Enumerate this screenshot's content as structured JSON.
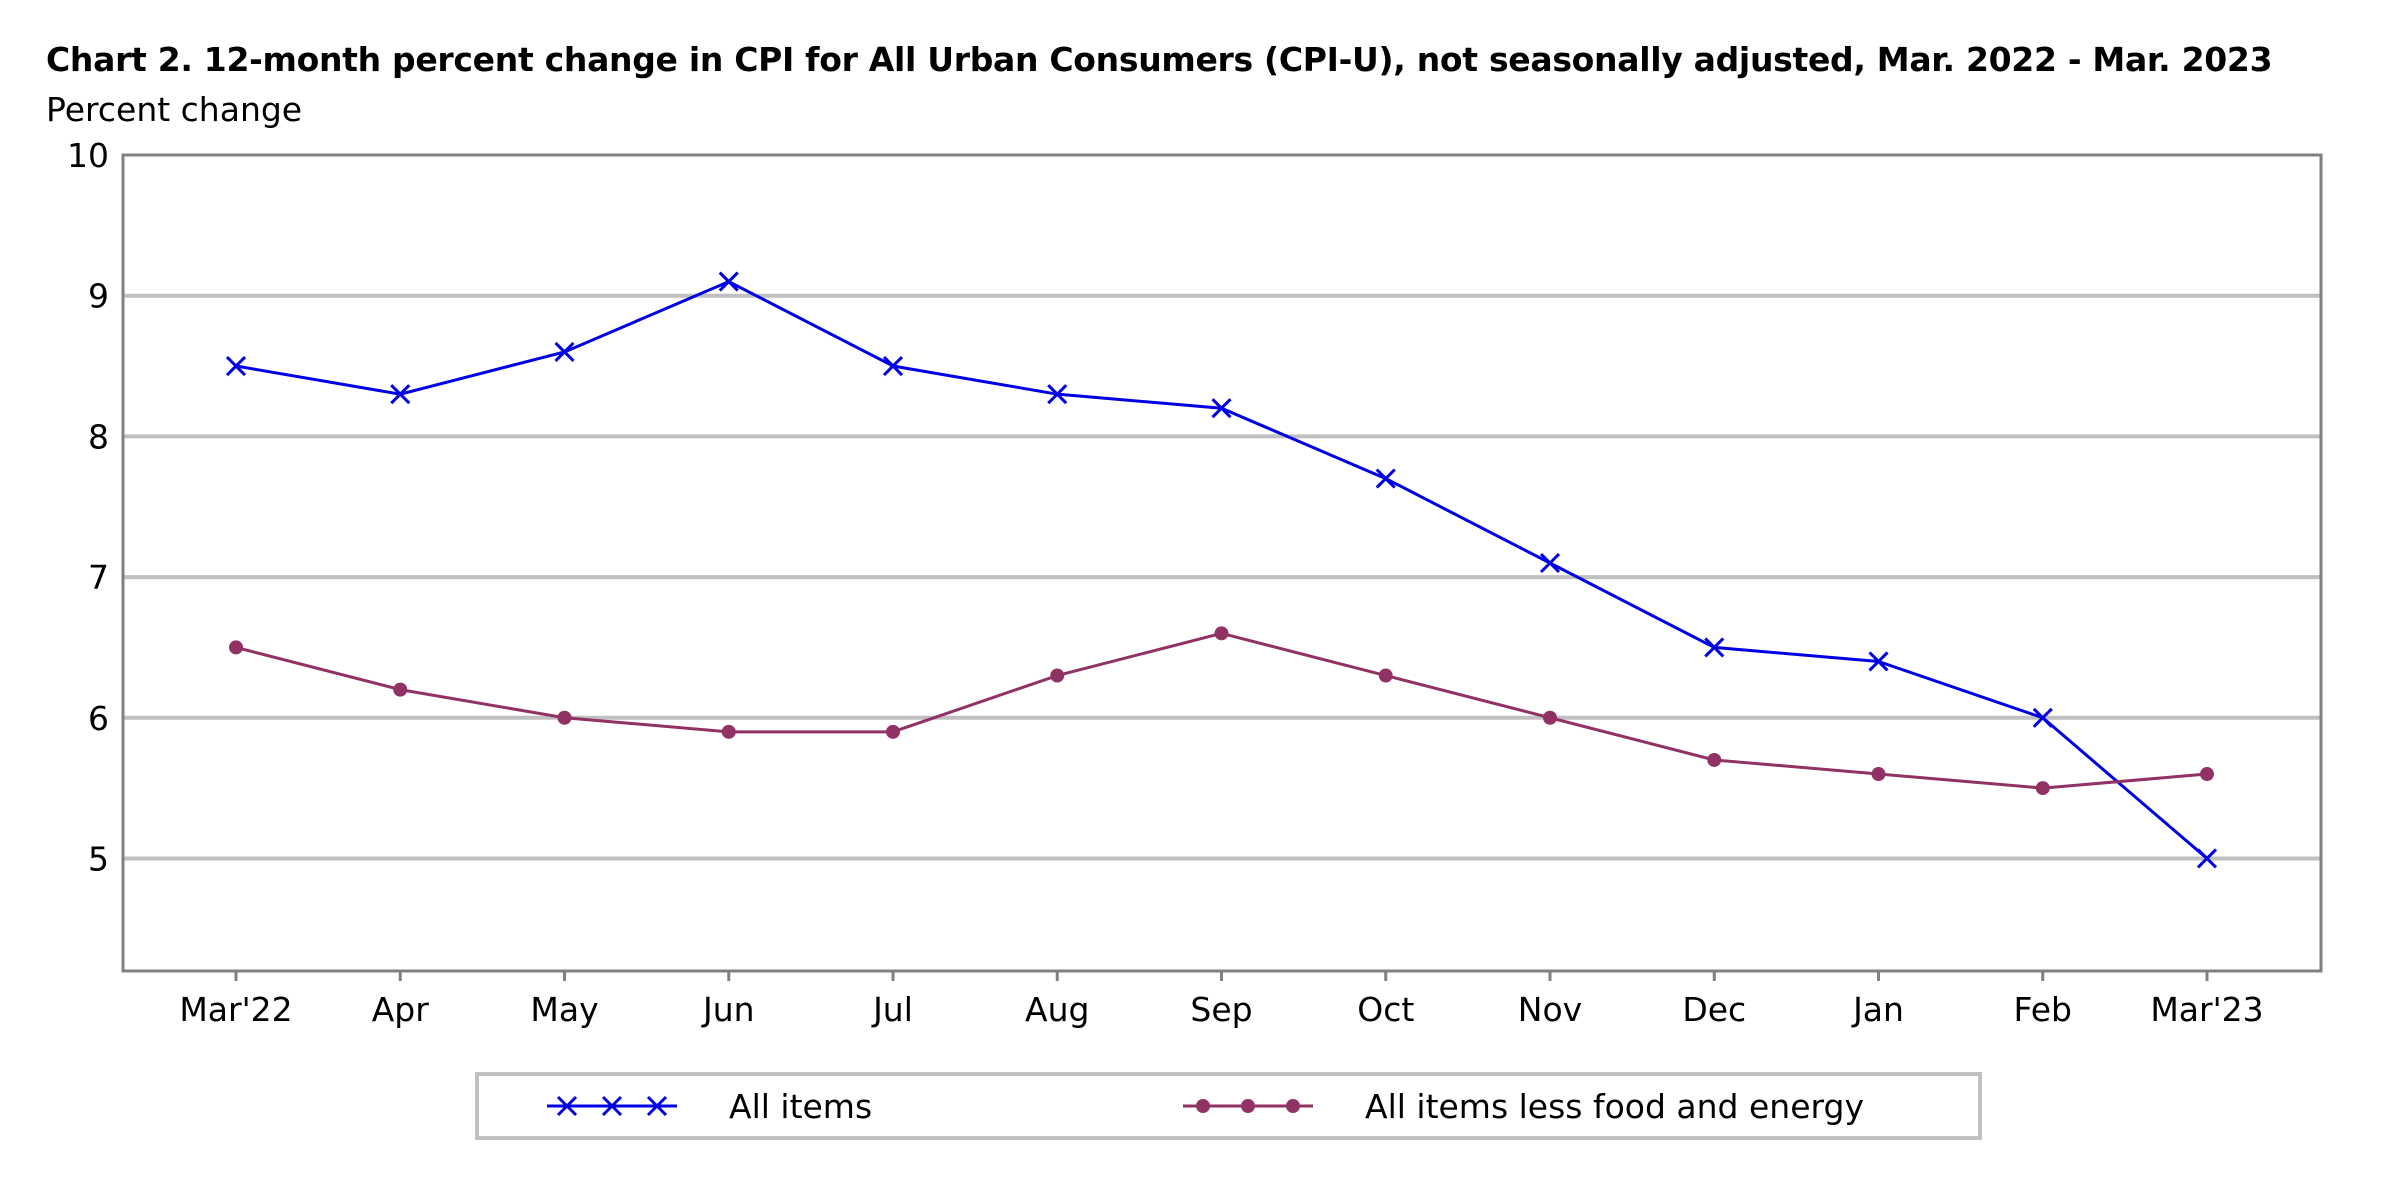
{
  "chart_data": {
    "type": "line",
    "title": "Chart 2. 12-month percent change in CPI for All Urban Consumers (CPI-U), not seasonally adjusted, Mar. 2022 - Mar. 2023",
    "ylabel": "Percent change",
    "xlabel": "",
    "categories": [
      "Mar'22",
      "Apr",
      "May",
      "Jun",
      "Jul",
      "Aug",
      "Sep",
      "Oct",
      "Nov",
      "Dec",
      "Jan",
      "Feb",
      "Mar'23"
    ],
    "yticks": [
      5,
      6,
      7,
      8,
      9,
      10
    ],
    "ylim": [
      4.2,
      10
    ],
    "grid": true,
    "legend_position": "bottom",
    "series": [
      {
        "name": "All items",
        "color": "#0000e6",
        "marker": "x",
        "values": [
          8.5,
          8.3,
          8.6,
          9.1,
          8.5,
          8.3,
          8.2,
          7.7,
          7.1,
          6.5,
          6.4,
          6.0,
          5.0
        ]
      },
      {
        "name": "All items less food and energy",
        "color": "#913264",
        "marker": "circle",
        "values": [
          6.5,
          6.2,
          6.0,
          5.9,
          5.9,
          6.3,
          6.6,
          6.3,
          6.0,
          5.7,
          5.6,
          5.5,
          5.6
        ]
      }
    ]
  }
}
